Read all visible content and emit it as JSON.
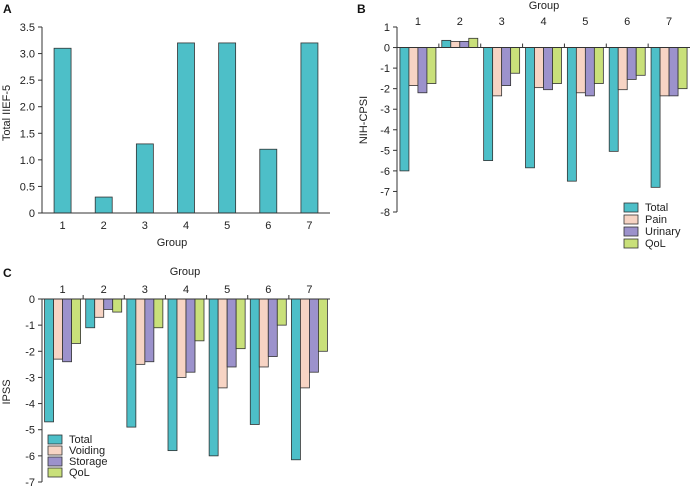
{
  "chart_data": [
    {
      "panel": "A",
      "type": "bar",
      "xlabel": "Group",
      "ylabel": "Total IIEF-5",
      "ylim": [
        0,
        3.5
      ],
      "yticks": [
        "0",
        "0.5",
        "1.0",
        "1.5",
        "2.0",
        "2.5",
        "3.0",
        "3.5"
      ],
      "categories": [
        "1",
        "2",
        "3",
        "4",
        "5",
        "6",
        "7"
      ],
      "values": [
        3.1,
        0.3,
        1.3,
        3.2,
        3.2,
        1.2,
        3.2
      ],
      "color": "#4dbfc8"
    },
    {
      "panel": "B",
      "type": "bar",
      "xlabel": "Group",
      "ylabel": "NIH-CPSI",
      "ylim": [
        -8,
        1
      ],
      "yticks": [
        "1",
        "0",
        "-1",
        "-2",
        "-3",
        "-4",
        "-5",
        "-6",
        "-7",
        "-8"
      ],
      "categories": [
        "1",
        "2",
        "3",
        "4",
        "5",
        "6",
        "7"
      ],
      "series": [
        {
          "name": "Total",
          "color": "#4dbfc8",
          "values": [
            -6.0,
            0.35,
            -5.5,
            -5.85,
            -6.5,
            -5.05,
            -6.8
          ]
        },
        {
          "name": "Pain",
          "color": "#f7d4c4",
          "values": [
            -1.85,
            0.3,
            -2.35,
            -1.95,
            -2.2,
            -2.05,
            -2.35
          ]
        },
        {
          "name": "Urinary",
          "color": "#9c92cc",
          "values": [
            -2.2,
            0.3,
            -1.85,
            -2.05,
            -2.35,
            -1.55,
            -2.35
          ]
        },
        {
          "name": "QoL",
          "color": "#c9e07a",
          "values": [
            -1.75,
            0.45,
            -1.25,
            -1.75,
            -1.75,
            -1.35,
            -2.0
          ]
        }
      ]
    },
    {
      "panel": "C",
      "type": "bar",
      "xlabel": "Group",
      "ylabel": "IPSS",
      "ylim": [
        -7,
        0
      ],
      "yticks": [
        "0",
        "-1",
        "-2",
        "-3",
        "-4",
        "-5",
        "-6",
        "-7"
      ],
      "categories": [
        "1",
        "2",
        "3",
        "4",
        "5",
        "6",
        "7"
      ],
      "series": [
        {
          "name": "Total",
          "color": "#4dbfc8",
          "values": [
            -4.7,
            -1.1,
            -4.9,
            -5.8,
            -6.0,
            -4.8,
            -6.15
          ]
        },
        {
          "name": "Voiding",
          "color": "#f7d4c4",
          "values": [
            -2.3,
            -0.7,
            -2.5,
            -3.0,
            -3.4,
            -2.6,
            -3.4
          ]
        },
        {
          "name": "Storage",
          "color": "#9c92cc",
          "values": [
            -2.4,
            -0.4,
            -2.4,
            -2.8,
            -2.6,
            -2.2,
            -2.8
          ]
        },
        {
          "name": "QoL",
          "color": "#c9e07a",
          "values": [
            -1.7,
            -0.5,
            -1.1,
            -1.6,
            -1.9,
            -1.0,
            -2.0
          ]
        }
      ]
    }
  ]
}
